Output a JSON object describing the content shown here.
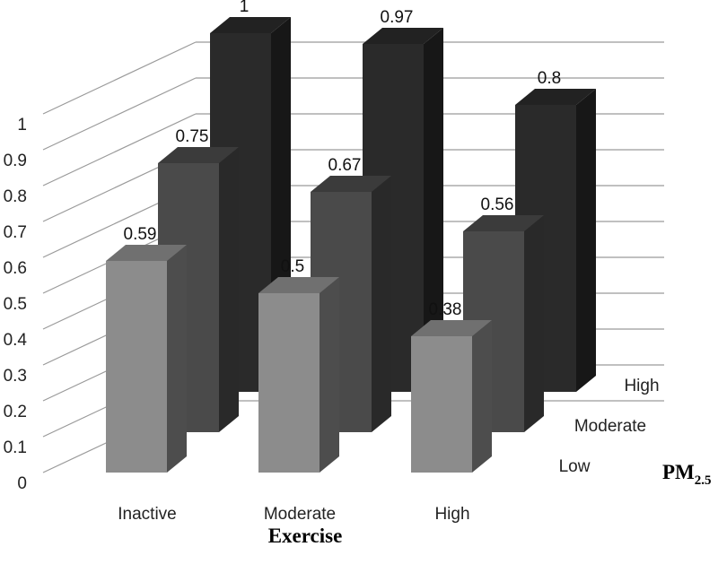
{
  "chart_data": {
    "type": "bar",
    "subtype": "3d-clustered-column",
    "categories": [
      "Inactive",
      "Moderate",
      "High"
    ],
    "series": [
      {
        "name": "Low",
        "values": [
          0.59,
          0.5,
          0.38
        ],
        "color": "#8c8c8c"
      },
      {
        "name": "Moderate",
        "values": [
          0.75,
          0.67,
          0.56
        ],
        "color": "#4a4a4a"
      },
      {
        "name": "High",
        "values": [
          1,
          0.97,
          0.8
        ],
        "color": "#2a2a2a"
      }
    ],
    "y_ticks": [
      "0",
      "0.1",
      "0.2",
      "0.3",
      "0.4",
      "0.5",
      "0.6",
      "0.7",
      "0.8",
      "0.9",
      "1"
    ],
    "ylim": [
      0,
      1
    ],
    "xlabel": "Exercise",
    "depth_label": "PM",
    "depth_label_subscript": "2.5",
    "grid": true
  }
}
